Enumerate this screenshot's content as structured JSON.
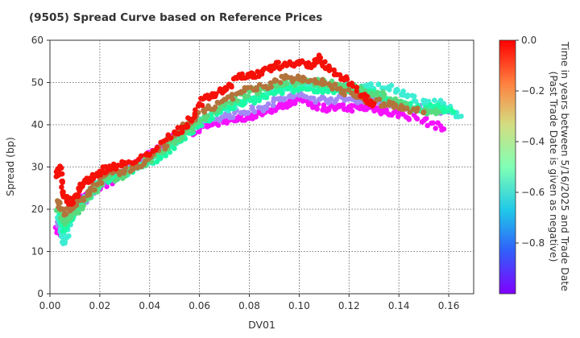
{
  "chart_data": {
    "type": "scatter",
    "title": "(9505)   Spread Curve based on Reference Prices",
    "xlabel": "DV01",
    "ylabel": "Spread (bp)",
    "xlim": [
      0,
      0.17
    ],
    "ylim": [
      0,
      60
    ],
    "x_ticks": [
      "0.00",
      "0.02",
      "0.04",
      "0.06",
      "0.08",
      "0.10",
      "0.12",
      "0.14",
      "0.16"
    ],
    "y_ticks": [
      "0",
      "10",
      "20",
      "30",
      "40",
      "50",
      "60"
    ],
    "grid": true,
    "colorbar": {
      "label_line1": "Time in years between 5/16/2025 and Trade Date",
      "label_line2": "(Past Trade Date is given as negative)",
      "range": [
        -1.0,
        0.0
      ],
      "ticks": [
        "0.0",
        "−0.2",
        "−0.4",
        "−0.6",
        "−0.8"
      ],
      "colormap": "rainbow"
    },
    "clusters": [
      {
        "name": "purple",
        "color_value": -0.98,
        "points": [
          [
            0.003,
            15
          ],
          [
            0.004,
            14.5
          ],
          [
            0.006,
            17
          ],
          [
            0.008,
            19
          ],
          [
            0.01,
            20
          ],
          [
            0.012,
            22
          ],
          [
            0.016,
            24
          ],
          [
            0.02,
            25
          ],
          [
            0.025,
            27
          ],
          [
            0.03,
            29
          ],
          [
            0.035,
            31
          ],
          [
            0.04,
            33
          ],
          [
            0.045,
            35
          ],
          [
            0.05,
            37
          ],
          [
            0.06,
            39
          ],
          [
            0.065,
            40
          ],
          [
            0.07,
            41
          ],
          [
            0.075,
            41.5
          ],
          [
            0.08,
            42
          ],
          [
            0.085,
            43
          ],
          [
            0.09,
            44
          ],
          [
            0.095,
            45
          ],
          [
            0.1,
            46
          ],
          [
            0.105,
            45
          ],
          [
            0.11,
            44
          ],
          [
            0.115,
            44
          ],
          [
            0.12,
            44
          ],
          [
            0.125,
            44
          ],
          [
            0.13,
            44
          ],
          [
            0.135,
            43
          ],
          [
            0.14,
            42.5
          ],
          [
            0.15,
            41
          ],
          [
            0.158,
            39
          ]
        ]
      },
      {
        "name": "blue",
        "color_value": -0.82,
        "points": [
          [
            0.003,
            17
          ],
          [
            0.005,
            16
          ],
          [
            0.008,
            19
          ],
          [
            0.012,
            21
          ],
          [
            0.018,
            25
          ],
          [
            0.025,
            28
          ],
          [
            0.032,
            30
          ],
          [
            0.04,
            33
          ],
          [
            0.048,
            36
          ],
          [
            0.055,
            39
          ],
          [
            0.062,
            41
          ],
          [
            0.07,
            42
          ],
          [
            0.078,
            43
          ],
          [
            0.085,
            44
          ],
          [
            0.092,
            46
          ],
          [
            0.1,
            47
          ],
          [
            0.108,
            46
          ],
          [
            0.115,
            46
          ],
          [
            0.122,
            46
          ],
          [
            0.13,
            46
          ],
          [
            0.138,
            45
          ],
          [
            0.145,
            44
          ],
          [
            0.152,
            44
          ],
          [
            0.16,
            43
          ]
        ]
      },
      {
        "name": "cyan",
        "color_value": -0.62,
        "points": [
          [
            0.003,
            18
          ],
          [
            0.005,
            14
          ],
          [
            0.006,
            12
          ],
          [
            0.008,
            17
          ],
          [
            0.012,
            21
          ],
          [
            0.018,
            26
          ],
          [
            0.025,
            28
          ],
          [
            0.032,
            29
          ],
          [
            0.04,
            31
          ],
          [
            0.048,
            35
          ],
          [
            0.056,
            39
          ],
          [
            0.064,
            42
          ],
          [
            0.072,
            44
          ],
          [
            0.08,
            46
          ],
          [
            0.088,
            47.5
          ],
          [
            0.096,
            49
          ],
          [
            0.104,
            49
          ],
          [
            0.112,
            49
          ],
          [
            0.12,
            49
          ],
          [
            0.128,
            49
          ],
          [
            0.136,
            49
          ],
          [
            0.142,
            47
          ],
          [
            0.15,
            45
          ],
          [
            0.158,
            45
          ],
          [
            0.165,
            42
          ]
        ]
      },
      {
        "name": "green",
        "color_value": -0.45,
        "points": [
          [
            0.004,
            19
          ],
          [
            0.006,
            15
          ],
          [
            0.009,
            18
          ],
          [
            0.014,
            22
          ],
          [
            0.02,
            26
          ],
          [
            0.028,
            28
          ],
          [
            0.036,
            30
          ],
          [
            0.044,
            32
          ],
          [
            0.052,
            36
          ],
          [
            0.06,
            40
          ],
          [
            0.068,
            43
          ],
          [
            0.076,
            45
          ],
          [
            0.084,
            46
          ],
          [
            0.092,
            48
          ],
          [
            0.1,
            48.5
          ],
          [
            0.108,
            48.5
          ],
          [
            0.116,
            48
          ],
          [
            0.124,
            48
          ],
          [
            0.132,
            47
          ],
          [
            0.14,
            45
          ],
          [
            0.148,
            44
          ],
          [
            0.156,
            44
          ],
          [
            0.162,
            43
          ]
        ]
      },
      {
        "name": "yellow",
        "color_value": -0.33,
        "points": [
          [
            0.003,
            20
          ],
          [
            0.006,
            17
          ],
          [
            0.01,
            19
          ],
          [
            0.016,
            23
          ],
          [
            0.022,
            27
          ],
          [
            0.03,
            28
          ],
          [
            0.038,
            31
          ],
          [
            0.046,
            34
          ],
          [
            0.054,
            38
          ],
          [
            0.062,
            42
          ],
          [
            0.07,
            45
          ],
          [
            0.078,
            47
          ],
          [
            0.086,
            49
          ],
          [
            0.094,
            50
          ],
          [
            0.102,
            50
          ],
          [
            0.11,
            50
          ],
          [
            0.118,
            49
          ],
          [
            0.126,
            48
          ],
          [
            0.134,
            47
          ],
          [
            0.142,
            45
          ],
          [
            0.15,
            43
          ],
          [
            0.156,
            43
          ]
        ]
      },
      {
        "name": "orange",
        "color_value": -0.15,
        "points": [
          [
            0.003,
            22
          ],
          [
            0.006,
            19
          ],
          [
            0.01,
            21
          ],
          [
            0.016,
            24
          ],
          [
            0.022,
            28
          ],
          [
            0.03,
            29
          ],
          [
            0.038,
            31
          ],
          [
            0.046,
            35
          ],
          [
            0.054,
            40
          ],
          [
            0.062,
            43
          ],
          [
            0.07,
            46
          ],
          [
            0.078,
            48
          ],
          [
            0.086,
            49
          ],
          [
            0.094,
            51
          ],
          [
            0.102,
            51
          ],
          [
            0.11,
            50
          ],
          [
            0.118,
            48
          ],
          [
            0.126,
            46
          ],
          [
            0.134,
            45
          ],
          [
            0.142,
            44
          ],
          [
            0.15,
            43
          ]
        ]
      },
      {
        "name": "red",
        "color_value": -0.02,
        "points": [
          [
            0.003,
            28
          ],
          [
            0.004,
            30
          ],
          [
            0.005,
            24
          ],
          [
            0.007,
            22
          ],
          [
            0.009,
            22
          ],
          [
            0.012,
            25
          ],
          [
            0.015,
            27
          ],
          [
            0.018,
            28
          ],
          [
            0.02,
            29
          ],
          [
            0.025,
            30
          ],
          [
            0.03,
            31
          ],
          [
            0.04,
            33
          ],
          [
            0.05,
            38
          ],
          [
            0.055,
            40
          ],
          [
            0.06,
            45
          ],
          [
            0.065,
            47
          ],
          [
            0.07,
            48
          ],
          [
            0.075,
            51
          ],
          [
            0.08,
            52
          ],
          [
            0.085,
            52
          ],
          [
            0.09,
            54
          ],
          [
            0.095,
            54
          ],
          [
            0.1,
            55
          ],
          [
            0.105,
            54
          ],
          [
            0.108,
            56
          ],
          [
            0.112,
            53
          ],
          [
            0.118,
            51
          ],
          [
            0.125,
            47
          ],
          [
            0.13,
            45
          ]
        ]
      }
    ]
  }
}
